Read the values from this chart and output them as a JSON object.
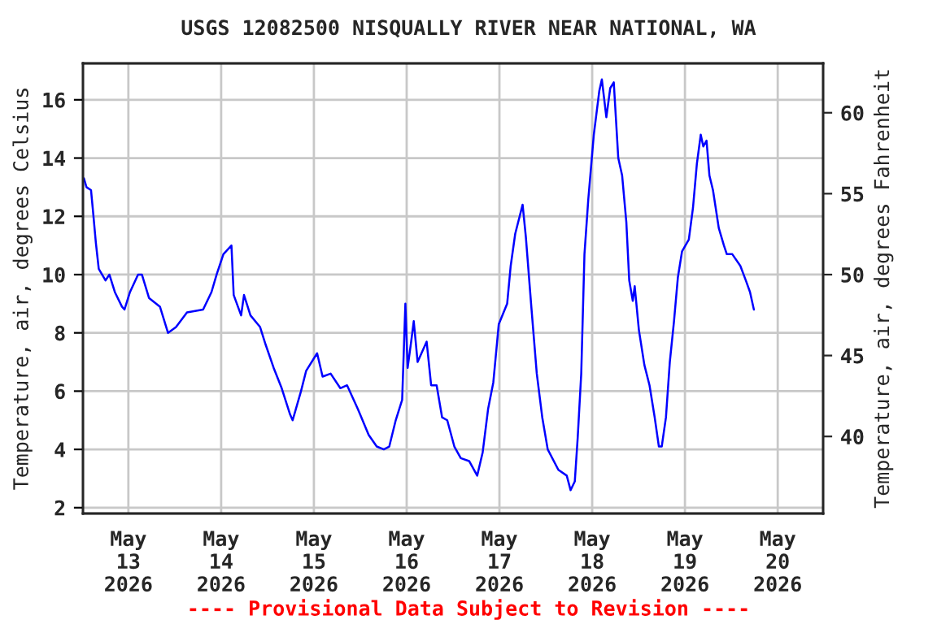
{
  "chart_data": {
    "type": "line",
    "title": "USGS 12082500 NISQUALLY RIVER NEAR NATIONAL, WA",
    "ylabel": "Temperature, air, degrees Celsius",
    "y2label": "Temperature, air, degrees Fahrenheit",
    "annotations": [
      "---- Provisional Data Subject to Revision ----"
    ],
    "x": [
      "2026-05-12T12:30",
      "2026-05-12T13:10",
      "2026-05-12T14:20",
      "2026-05-12T14:50",
      "2026-05-12T15:35",
      "2026-05-12T16:20",
      "2026-05-12T18:05",
      "2026-05-12T19:05",
      "2026-05-12T20:30",
      "2026-05-12T22:20",
      "2026-05-12T23:00",
      "2026-05-13T00:25",
      "2026-05-13T02:30",
      "2026-05-13T03:30",
      "2026-05-13T05:20",
      "2026-05-13T08:10",
      "2026-05-13T10:15",
      "2026-05-13T12:20",
      "2026-05-13T15:10",
      "2026-05-13T19:20",
      "2026-05-13T21:30",
      "2026-05-13T22:50",
      "2026-05-14T00:35",
      "2026-05-14T02:40",
      "2026-05-14T03:15",
      "2026-05-14T05:10",
      "2026-05-14T05:55",
      "2026-05-14T07:35",
      "2026-05-14T10:05",
      "2026-05-14T11:30",
      "2026-05-14T13:35",
      "2026-05-14T15:40",
      "2026-05-14T17:50",
      "2026-05-14T18:30",
      "2026-05-14T20:40",
      "2026-05-14T22:00",
      "2026-05-15T00:50",
      "2026-05-15T02:15",
      "2026-05-15T04:20",
      "2026-05-15T06:50",
      "2026-05-15T08:35",
      "2026-05-15T11:20",
      "2026-05-15T14:10",
      "2026-05-15T16:15",
      "2026-05-15T18:05",
      "2026-05-15T19:30",
      "2026-05-15T21:10",
      "2026-05-15T22:50",
      "2026-05-15T23:40",
      "2026-05-16T00:15",
      "2026-05-16T01:10",
      "2026-05-16T01:50",
      "2026-05-16T02:50",
      "2026-05-16T05:10",
      "2026-05-16T06:20",
      "2026-05-16T07:45",
      "2026-05-16T09:10",
      "2026-05-16T10:30",
      "2026-05-16T12:20",
      "2026-05-16T14:00",
      "2026-05-16T16:10",
      "2026-05-16T18:15",
      "2026-05-16T19:40",
      "2026-05-16T21:05",
      "2026-05-16T22:25",
      "2026-05-16T23:50",
      "2026-05-17T02:00",
      "2026-05-17T02:55",
      "2026-05-17T04:05",
      "2026-05-17T06:00",
      "2026-05-17T06:50",
      "2026-05-17T08:15",
      "2026-05-17T09:40",
      "2026-05-17T11:05",
      "2026-05-17T12:30",
      "2026-05-17T15:15",
      "2026-05-17T17:25",
      "2026-05-17T18:25",
      "2026-05-17T19:30",
      "2026-05-17T20:15",
      "2026-05-17T21:10",
      "2026-05-17T22:00",
      "2026-05-17T23:00",
      "2026-05-18T00:25",
      "2026-05-18T01:50",
      "2026-05-18T02:30",
      "2026-05-18T03:40",
      "2026-05-18T04:40",
      "2026-05-18T05:35",
      "2026-05-18T06:45",
      "2026-05-18T07:45",
      "2026-05-18T08:50",
      "2026-05-18T09:35",
      "2026-05-18T10:30",
      "2026-05-18T11:00",
      "2026-05-18T12:05",
      "2026-05-18T13:30",
      "2026-05-18T14:50",
      "2026-05-18T16:10",
      "2026-05-18T17:15",
      "2026-05-18T18:00",
      "2026-05-18T19:05",
      "2026-05-18T20:05",
      "2026-05-18T21:10",
      "2026-05-18T22:10",
      "2026-05-18T23:15",
      "2026-05-19T01:00",
      "2026-05-19T02:05",
      "2026-05-19T03:05",
      "2026-05-19T04:05",
      "2026-05-19T04:45",
      "2026-05-19T05:35",
      "2026-05-19T06:20",
      "2026-05-19T07:15",
      "2026-05-19T08:45",
      "2026-05-19T10:05",
      "2026-05-19T10:50",
      "2026-05-19T12:15",
      "2026-05-19T14:20",
      "2026-05-19T15:45",
      "2026-05-19T16:50",
      "2026-05-19T17:50"
    ],
    "series": [
      {
        "color": "#0000ff",
        "values": [
          13.3,
          13.0,
          12.9,
          12.2,
          11.1,
          10.2,
          9.8,
          10.0,
          9.4,
          8.9,
          8.8,
          9.4,
          10.0,
          10.0,
          9.2,
          8.9,
          8.0,
          8.2,
          8.7,
          8.8,
          9.4,
          10.0,
          10.7,
          11.0,
          9.3,
          8.6,
          9.3,
          8.6,
          8.2,
          7.6,
          6.8,
          6.1,
          5.2,
          5.0,
          6.0,
          6.7,
          7.3,
          6.5,
          6.6,
          6.1,
          6.2,
          5.4,
          4.5,
          4.1,
          4.0,
          4.1,
          5.0,
          5.7,
          9.0,
          6.8,
          7.7,
          8.4,
          7.0,
          7.7,
          6.2,
          6.2,
          5.1,
          5.0,
          4.1,
          3.7,
          3.6,
          3.1,
          3.9,
          5.4,
          6.3,
          8.3,
          9.0,
          10.3,
          11.4,
          12.4,
          11.3,
          8.9,
          6.6,
          5.1,
          4.0,
          3.3,
          3.1,
          2.6,
          2.9,
          4.4,
          6.6,
          10.7,
          12.6,
          14.8,
          16.3,
          16.7,
          15.4,
          16.4,
          16.6,
          14.0,
          13.4,
          11.8,
          9.8,
          9.1,
          9.6,
          8.1,
          6.9,
          6.2,
          5.1,
          4.1,
          4.1,
          5.1,
          7.0,
          8.4,
          9.9,
          10.8,
          11.2,
          12.3,
          13.8,
          14.8,
          14.4,
          14.6,
          13.4,
          12.9,
          11.6,
          11.0,
          10.7,
          10.7,
          10.3,
          9.8,
          9.4,
          8.8
        ]
      }
    ],
    "xlim": [
      "2026-05-12T12:15",
      "2026-05-20T11:45"
    ],
    "xticks": [
      {
        "value": "2026-05-13",
        "label": "May\n13\n2026"
      },
      {
        "value": "2026-05-14",
        "label": "May\n14\n2026"
      },
      {
        "value": "2026-05-15",
        "label": "May\n15\n2026"
      },
      {
        "value": "2026-05-16",
        "label": "May\n16\n2026"
      },
      {
        "value": "2026-05-17",
        "label": "May\n17\n2026"
      },
      {
        "value": "2026-05-18",
        "label": "May\n18\n2026"
      },
      {
        "value": "2026-05-19",
        "label": "May\n19\n2026"
      },
      {
        "value": "2026-05-20",
        "label": "May\n20\n2026"
      }
    ],
    "ylim": [
      1.8,
      17.25
    ],
    "yticks": [
      2,
      4,
      6,
      8,
      10,
      12,
      14,
      16
    ],
    "y2lim": [
      35.24,
      63.05
    ],
    "y2ticks": [
      40,
      45,
      50,
      55,
      60
    ],
    "grid": true,
    "legend": false,
    "marker": "none",
    "line_style": "solid"
  }
}
